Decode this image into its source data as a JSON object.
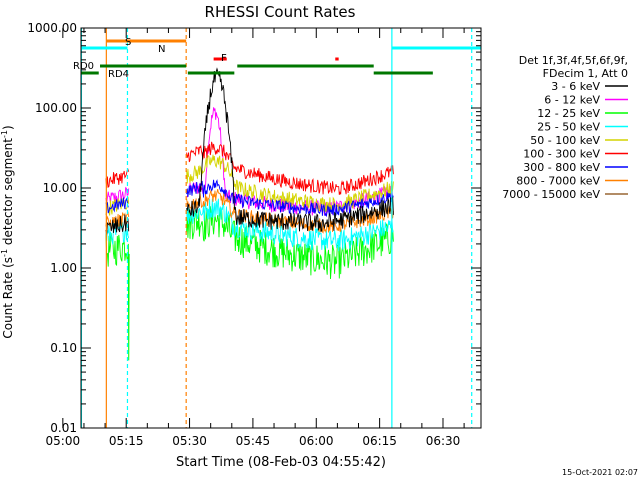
{
  "chart_data": {
    "type": "line",
    "title": "RHESSI Count Rates",
    "xlabel": "Start Time (08-Feb-03 04:55:42)",
    "ylabel_main": "Count Rate (s",
    "ylabel_sup": "-1",
    "ylabel_end": " detector segment",
    "ylabel_sup2": "-1",
    "ylabel_close": ")",
    "y_scale": "log",
    "ylim": [
      0.01,
      1000
    ],
    "y_ticks": [
      "0.01",
      "0.10",
      "1.00",
      "10.00",
      "100.00",
      "1000.00"
    ],
    "x_range_minutes": [
      4.3,
      99
    ],
    "x_ticks": [
      {
        "label": "05:00",
        "min": 0
      },
      {
        "label": "05:15",
        "min": 15
      },
      {
        "label": "05:30",
        "min": 30
      },
      {
        "label": "05:45",
        "min": 45
      },
      {
        "label": "06:00",
        "min": 60
      },
      {
        "label": "06:15",
        "min": 75
      },
      {
        "label": "06:30",
        "min": 90
      }
    ],
    "legend_header": [
      "Det 1f,3f,4f,5f,6f,9f,",
      "FDecim 1, Att 0"
    ],
    "series": [
      {
        "name": "3 - 6 keV",
        "color": "#000000"
      },
      {
        "name": "6 - 12 keV",
        "color": "#ff00ff"
      },
      {
        "name": "12 - 25 keV",
        "color": "#00ff00"
      },
      {
        "name": "25 - 50 keV",
        "color": "#00ffff"
      },
      {
        "name": "50 - 100 keV",
        "color": "#d4d400"
      },
      {
        "name": "100 - 300 keV",
        "color": "#ff0000"
      },
      {
        "name": "300 - 800 keV",
        "color": "#0000ff"
      },
      {
        "name": "800 - 7000 keV",
        "color": "#ff8000"
      },
      {
        "name": "7000 - 15000 keV",
        "color": "#996633"
      }
    ],
    "flag_labels": {
      "saa": "S",
      "night": "N",
      "flare": "F",
      "rd0": "RD0",
      "rd4": "RD4"
    },
    "timestamp": "15-Oct-2021 02:07"
  }
}
